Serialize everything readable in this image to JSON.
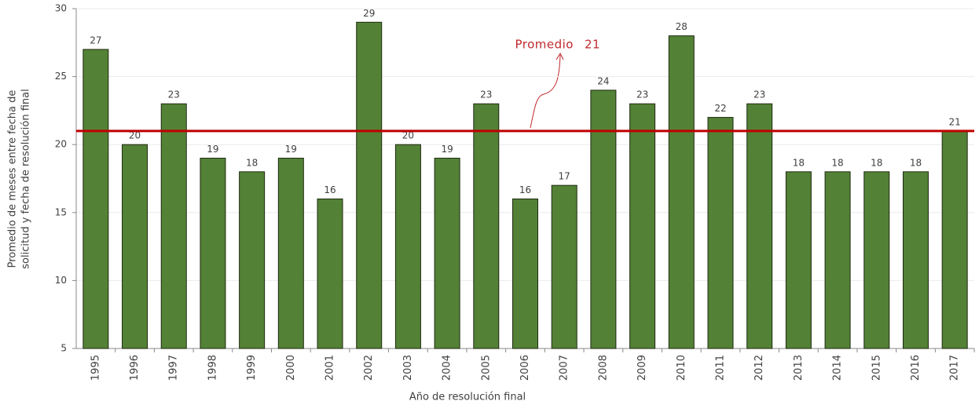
{
  "chart_data": {
    "type": "bar",
    "categories": [
      "1995",
      "1996",
      "1997",
      "1998",
      "1999",
      "2000",
      "2001",
      "2002",
      "2003",
      "2004",
      "2005",
      "2006",
      "2007",
      "2008",
      "2009",
      "2010",
      "2011",
      "2012",
      "2013",
      "2014",
      "2015",
      "2016",
      "2017"
    ],
    "values": [
      27,
      20,
      23,
      19,
      18,
      19,
      16,
      29,
      20,
      19,
      23,
      16,
      17,
      24,
      23,
      28,
      22,
      23,
      18,
      18,
      18,
      18,
      21
    ],
    "color": "#538135",
    "ylim": [
      5,
      30
    ],
    "yticks": [
      5,
      10,
      15,
      20,
      25,
      30
    ],
    "grid": true,
    "y_label": [
      "Promedio de meses entre fecha de",
      "solicitud y fecha de resolución final"
    ],
    "x_label": "Año de resolución final",
    "average": {
      "label": "Promedio",
      "value": 21,
      "color": "#c00000"
    }
  }
}
